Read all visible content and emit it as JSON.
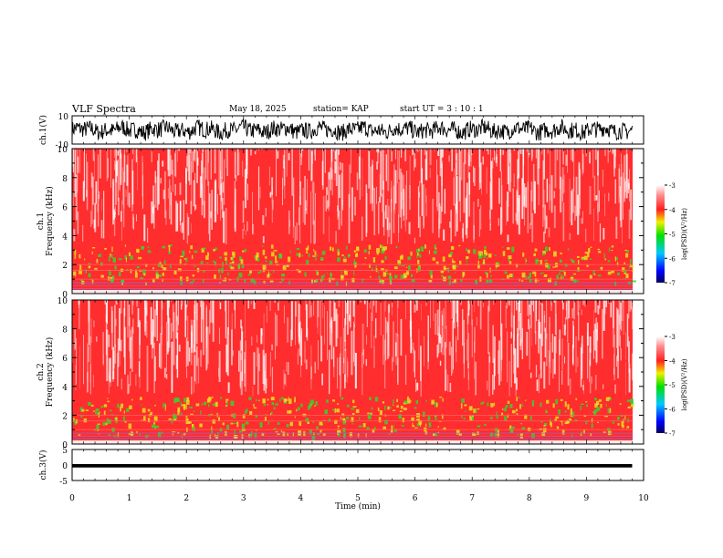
{
  "header": {
    "title": "VLF Spectra",
    "date": "May 18, 2025",
    "station": "station= KAP",
    "start": "start  UT =   3 : 10 : 1"
  },
  "colors": {
    "spectrogram_base": "#ff2d2d",
    "band_green": "#38d430",
    "band_yellow": "#e8e020",
    "waveform": "#000000"
  },
  "chart_data": [
    {
      "type": "line",
      "panel": "ch1-waveform",
      "ylabel": "ch.1(V)",
      "ylim": [
        -10,
        10
      ],
      "yticks": [
        "10",
        "-10"
      ],
      "x_range_min": [
        0,
        9.8
      ],
      "description_values": "noisy waveform, amplitude approx -7 to 8 V"
    },
    {
      "type": "heatmap",
      "panel": "ch1-spectrogram",
      "ylabel": "ch.1\nFrequency (kHz)",
      "ylabel_line1": "ch.1",
      "ylabel_line2": "Frequency (kHz)",
      "ylim": [
        0,
        10
      ],
      "yticks": [
        "0",
        "2",
        "4",
        "6",
        "8",
        "10"
      ],
      "colorbar": {
        "label": "log(PSD)(V²/Hz)",
        "range": [
          -7,
          -3
        ],
        "ticks": [
          "-3",
          "-4",
          "-5",
          "-6",
          "-7"
        ]
      },
      "bands": [
        {
          "from_khz": 0.8,
          "to_khz": 3.4,
          "level": "high (green/yellow)"
        },
        {
          "from_khz": 3.4,
          "to_khz": 10,
          "level": "medium (red)"
        }
      ]
    },
    {
      "type": "heatmap",
      "panel": "ch2-spectrogram",
      "ylabel_line1": "ch.2",
      "ylabel_line2": "Frequency (kHz)",
      "ylim": [
        0,
        10
      ],
      "yticks": [
        "0",
        "2",
        "4",
        "6",
        "8",
        "10"
      ],
      "colorbar": {
        "label": "log(PSD)(V²/Hz)",
        "range": [
          -7,
          -3
        ],
        "ticks": [
          "-3",
          "-4",
          "-5",
          "-6",
          "-7"
        ]
      },
      "bands": [
        {
          "from_khz": 0.6,
          "to_khz": 3.3,
          "level": "high (green/yellow)"
        },
        {
          "from_khz": 3.3,
          "to_khz": 10,
          "level": "medium (red)"
        }
      ]
    },
    {
      "type": "line",
      "panel": "ch3-waveform",
      "ylabel": "ch.3(V)",
      "ylim": [
        -5,
        5
      ],
      "yticks": [
        "5",
        "0",
        "-5"
      ],
      "level_v": [
        -0.8,
        0.3
      ]
    }
  ],
  "xaxis": {
    "label": "Time (min)",
    "xlim": [
      0,
      10
    ],
    "ticks": [
      "0",
      "1",
      "2",
      "3",
      "4",
      "5",
      "6",
      "7",
      "8",
      "9",
      "10"
    ]
  }
}
